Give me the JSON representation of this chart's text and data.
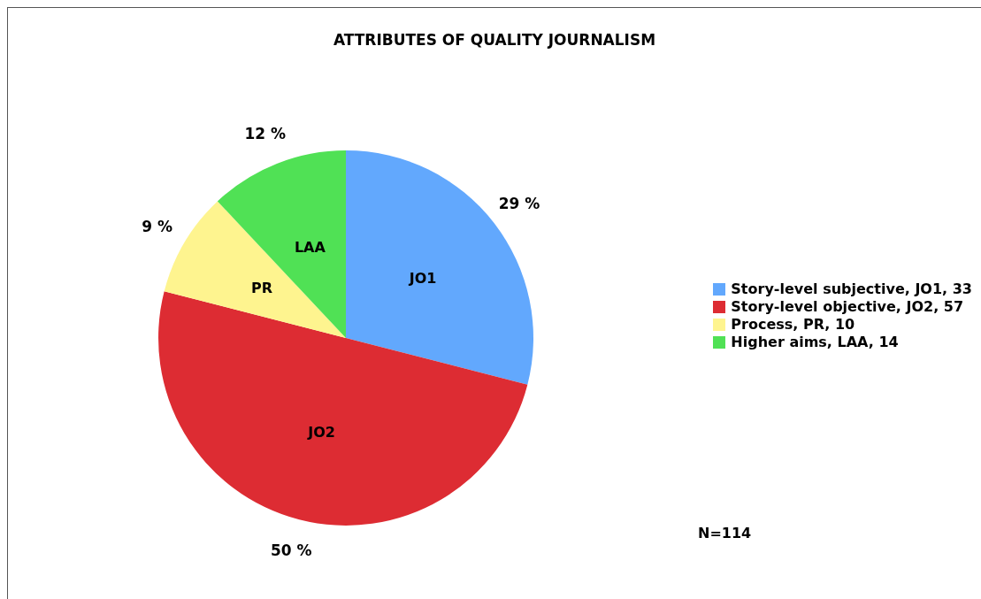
{
  "chart_data": {
    "type": "pie",
    "title": "ATTRIBUTES OF QUALITY JOURNALISM",
    "categories": [
      "Story-level subjective, JO1, 33",
      "Story-level objective, JO2, 57",
      "Process, PR, 10",
      "Higher aims, LAA, 14"
    ],
    "values": [
      29,
      50,
      9,
      12
    ],
    "colors": [
      "#62a8fd",
      "#dd2c33",
      "#fef48f",
      "#50e155"
    ],
    "value_labels": [
      "29 %",
      "50 %",
      "9 %",
      "12 %"
    ],
    "annotations": [
      "JO1",
      "JO2",
      "PR",
      "LAA",
      "N=114"
    ],
    "legend": "right"
  }
}
